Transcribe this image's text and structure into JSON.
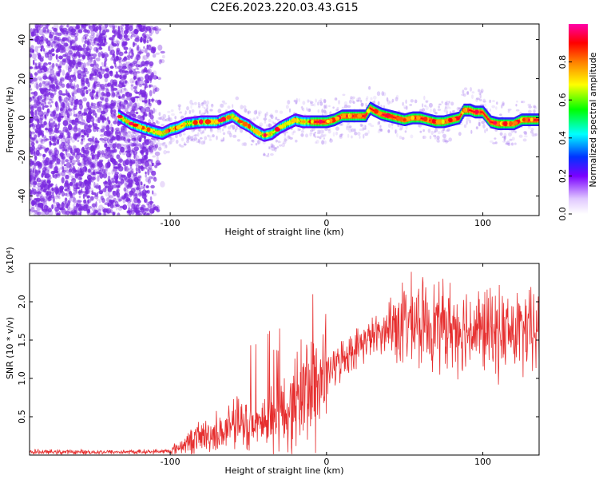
{
  "figure": {
    "title": "C2E6.2023.220.03.43.G15"
  },
  "colors": {
    "spectrum_points": "#7a28e0",
    "snr_line": "#e62e2e",
    "colormap": [
      "#ffffff",
      "#7a00ff",
      "#0033ff",
      "#00ffff",
      "#00ff00",
      "#ffff00",
      "#ff7f00",
      "#ff0000",
      "#ff00aa"
    ]
  },
  "chart_data": [
    {
      "type": "heatmap",
      "xlabel": "Height of straight line (km)",
      "ylabel": "Frequency (Hz)",
      "xlim": [
        -190,
        136
      ],
      "ylim": [
        -50,
        48
      ],
      "x_ticks": [
        -100,
        0,
        100
      ],
      "y_ticks": [
        -40,
        -20,
        0,
        20,
        40
      ],
      "grid": false,
      "noise_region_x": [
        -190,
        -104
      ],
      "ridge": {
        "x": [
          -133,
          -125,
          -118,
          -110,
          -105,
          -100,
          -95,
          -90,
          -80,
          -70,
          -60,
          -55,
          -50,
          -45,
          -40,
          -35,
          -30,
          -25,
          -20,
          -15,
          -10,
          -5,
          0,
          5,
          10,
          15,
          20,
          25,
          28,
          30,
          35,
          40,
          45,
          50,
          55,
          60,
          65,
          70,
          75,
          80,
          85,
          88,
          92,
          95,
          100,
          105,
          110,
          115,
          120,
          125,
          130,
          136
        ],
        "y": [
          1,
          -3,
          -5,
          -7,
          -8,
          -6,
          -5,
          -3,
          -2,
          -2,
          1,
          -2,
          -4,
          -7,
          -9,
          -8,
          -5,
          -3,
          -1,
          -2,
          -2,
          -2,
          -2,
          -1,
          1,
          1,
          1,
          1,
          5,
          4,
          2,
          1,
          0,
          -1,
          0,
          0,
          -1,
          -2,
          -2,
          -1,
          0,
          4,
          4,
          3,
          3,
          -2,
          -3,
          -3,
          -3,
          -1,
          -1,
          -1
        ]
      },
      "colorbar": {
        "label": "Normalized spectral amplitude",
        "range": [
          0,
          1
        ],
        "ticks": [
          0.0,
          0.2,
          0.4,
          0.6,
          0.8
        ],
        "tick_labels": [
          "0.0",
          "0.2",
          "0.4",
          "0.6",
          "0.8"
        ]
      }
    },
    {
      "type": "line",
      "xlabel": "Height of straight line (km)",
      "ylabel": "SNR (10 * v/v)",
      "y_multiplier_label": "(x10⁴)",
      "xlim": [
        -190,
        136
      ],
      "ylim": [
        0,
        2.5
      ],
      "x_ticks": [
        -100,
        0,
        100
      ],
      "y_ticks": [
        0.5,
        1.0,
        1.5,
        2.0
      ],
      "y_tick_labels": [
        "0.5",
        "1.0",
        "1.5",
        "2.0"
      ],
      "grid": false,
      "series": [
        {
          "x": [
            -190,
            -150,
            -120,
            -100,
            -95,
            -90,
            -85,
            -80,
            -75,
            -70,
            -65,
            -60,
            -55,
            -50,
            -45,
            -40,
            -35,
            -30,
            -25,
            -22,
            -20,
            -15,
            -10,
            -5,
            0,
            5,
            10,
            15,
            20,
            25,
            30,
            35,
            40,
            45,
            50,
            60,
            70,
            80,
            90,
            100,
            110,
            120,
            130,
            136
          ],
          "y": [
            0.04,
            0.04,
            0.04,
            0.05,
            0.1,
            0.15,
            0.2,
            0.25,
            0.25,
            0.3,
            0.3,
            0.35,
            0.4,
            0.4,
            0.4,
            0.45,
            0.5,
            0.55,
            0.55,
            0.6,
            0.7,
            0.85,
            0.9,
            0.95,
            1.05,
            1.15,
            1.25,
            1.35,
            1.4,
            1.5,
            1.55,
            1.6,
            1.65,
            1.7,
            1.72,
            1.72,
            1.7,
            1.68,
            1.65,
            1.62,
            1.6,
            1.6,
            1.6,
            1.6
          ]
        }
      ]
    }
  ]
}
